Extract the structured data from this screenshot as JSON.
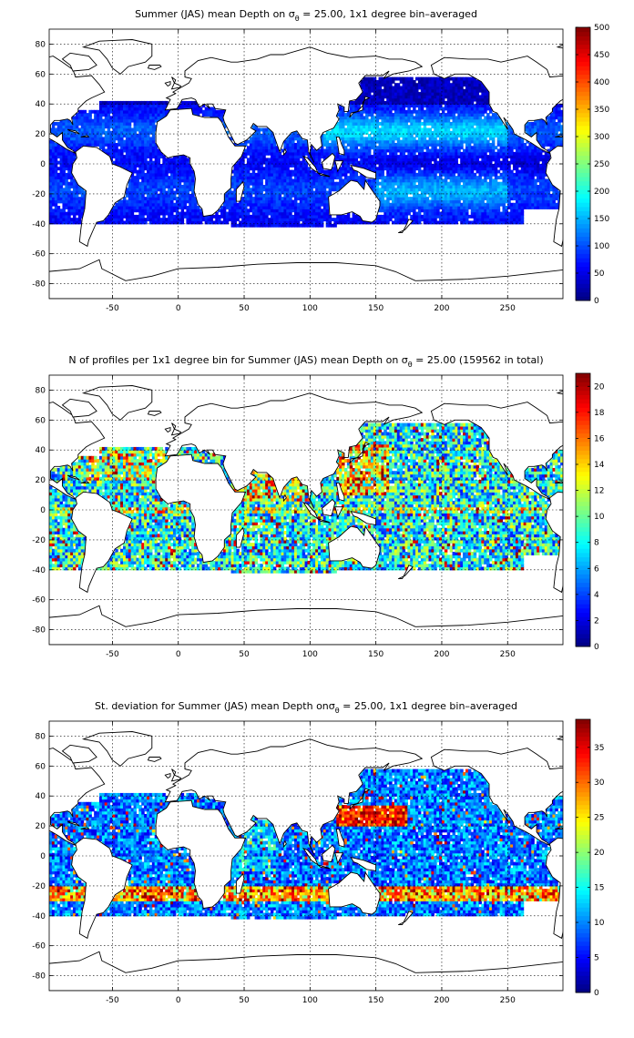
{
  "panels": [
    {
      "id": "mean",
      "title_prefix": "Summer (JAS) mean Depth on ",
      "title_suffix": " = 25.00, 1x1 degree bin–averaged",
      "colorbar_ticks": [
        "0",
        "50",
        "100",
        "150",
        "200",
        "250",
        "300",
        "350",
        "400",
        "450",
        "500"
      ],
      "cmax": 500
    },
    {
      "id": "count",
      "title_prefix": "N of profiles per 1x1 degree bin for Summer (JAS) mean Depth on ",
      "title_suffix": " = 25.00 (159562 in total)",
      "colorbar_ticks": [
        "0",
        "2",
        "4",
        "6",
        "8",
        "10",
        "12",
        "14",
        "16",
        "18",
        "20"
      ],
      "cmax": 21
    },
    {
      "id": "std",
      "title_prefix": "St. deviation for Summer (JAS) mean Depth on",
      "title_suffix": " = 25.00, 1x1 degree bin–averaged",
      "colorbar_ticks": [
        "0",
        "5",
        "10",
        "15",
        "20",
        "25",
        "30",
        "35"
      ],
      "cmax": 39
    }
  ],
  "sigma_symbol": "σ",
  "sigma_sub": "θ",
  "x_ticks": [
    "-50",
    "0",
    "50",
    "100",
    "150",
    "200",
    "250"
  ],
  "y_ticks": [
    "80",
    "60",
    "40",
    "20",
    "0",
    "-20",
    "-40",
    "-60",
    "-80"
  ],
  "colormap": "jet"
}
